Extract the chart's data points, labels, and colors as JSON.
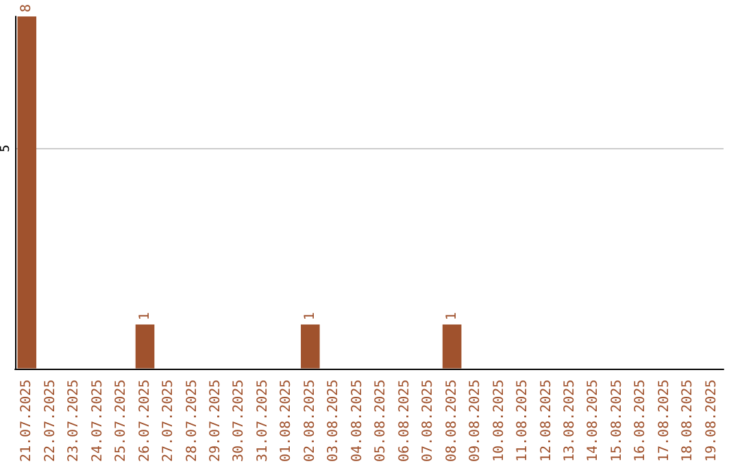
{
  "chart_data": {
    "type": "bar",
    "categories": [
      "21.07.2025",
      "22.07.2025",
      "23.07.2025",
      "24.07.2025",
      "25.07.2025",
      "26.07.2025",
      "27.07.2025",
      "28.07.2025",
      "29.07.2025",
      "30.07.2025",
      "31.07.2025",
      "01.08.2025",
      "02.08.2025",
      "03.08.2025",
      "04.08.2025",
      "05.08.2025",
      "06.08.2025",
      "07.08.2025",
      "08.08.2025",
      "09.08.2025",
      "10.08.2025",
      "11.08.2025",
      "12.08.2025",
      "13.08.2025",
      "14.08.2025",
      "15.08.2025",
      "16.08.2025",
      "17.08.2025",
      "18.08.2025",
      "19.08.2025"
    ],
    "values": [
      8,
      0,
      0,
      0,
      0,
      1,
      0,
      0,
      0,
      0,
      0,
      0,
      1,
      0,
      0,
      0,
      0,
      0,
      1,
      0,
      0,
      0,
      0,
      0,
      0,
      0,
      0,
      0,
      0,
      0
    ],
    "value_labels": [
      "8",
      null,
      null,
      null,
      null,
      "1",
      null,
      null,
      null,
      null,
      null,
      null,
      "1",
      null,
      null,
      null,
      null,
      null,
      "1",
      null,
      null,
      null,
      null,
      null,
      null,
      null,
      null,
      null,
      null,
      null
    ],
    "color": "#a0522d",
    "ylim": [
      0,
      8
    ],
    "yticks": [
      5
    ],
    "grid": "y"
  }
}
